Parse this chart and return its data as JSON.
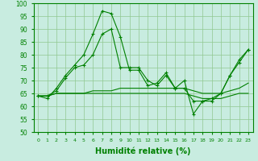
{
  "x": [
    0,
    1,
    2,
    3,
    4,
    5,
    6,
    7,
    8,
    9,
    10,
    11,
    12,
    13,
    14,
    15,
    16,
    17,
    18,
    19,
    20,
    21,
    22,
    23
  ],
  "line1": [
    64,
    63,
    67,
    72,
    76,
    80,
    88,
    97,
    96,
    87,
    74,
    74,
    68,
    69,
    73,
    67,
    70,
    57,
    62,
    62,
    65,
    72,
    78,
    82
  ],
  "line2": [
    64,
    64,
    66,
    71,
    75,
    76,
    80,
    88,
    90,
    75,
    75,
    75,
    70,
    68,
    72,
    67,
    67,
    62,
    62,
    63,
    65,
    72,
    77,
    82
  ],
  "line3": [
    64,
    64,
    65,
    65,
    65,
    65,
    65,
    65,
    65,
    65,
    65,
    65,
    65,
    65,
    65,
    65,
    65,
    64,
    63,
    63,
    63,
    64,
    65,
    65
  ],
  "line4": [
    64,
    64,
    65,
    65,
    65,
    65,
    66,
    66,
    66,
    67,
    67,
    67,
    67,
    67,
    67,
    67,
    67,
    66,
    65,
    65,
    65,
    66,
    67,
    69
  ],
  "line_color": "#008000",
  "bg_color": "#c8ece0",
  "grid_color": "#90c890",
  "xlabel": "Humidité relative (%)",
  "ylim": [
    50,
    100
  ],
  "xlim": [
    -0.5,
    23.5
  ]
}
